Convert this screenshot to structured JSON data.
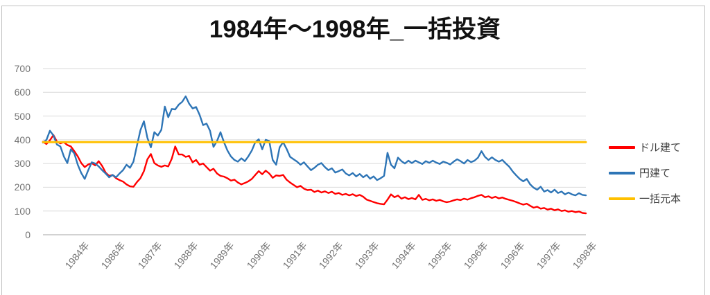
{
  "chart_data": {
    "type": "line",
    "title": "1984年～1998年_一括投資",
    "ylim": [
      0,
      700
    ],
    "y_ticks": [
      0,
      100,
      200,
      300,
      400,
      500,
      600,
      700
    ],
    "x_tick_labels": [
      "1984年",
      "1986年",
      "1987年",
      "1988年",
      "1989年",
      "1990年",
      "1991年",
      "1992年",
      "1993年",
      "1994年",
      "1995年",
      "1996年",
      "1996年",
      "1997年",
      "1998年"
    ],
    "grid": "horizontal",
    "legend_position": "right",
    "gridline_color": "#D9D9D9",
    "axis_line_color": "#A6A6A6",
    "tick_label_color": "#737373",
    "series": [
      {
        "name": "ドル建て",
        "key": "usd",
        "color": "#FF0000",
        "values": [
          392,
          382,
          398,
          420,
          392,
          385,
          390,
          378,
          372,
          352,
          330,
          302,
          285,
          296,
          302,
          292,
          310,
          290,
          262,
          248,
          252,
          238,
          230,
          224,
          212,
          204,
          202,
          222,
          238,
          268,
          318,
          340,
          302,
          292,
          286,
          292,
          288,
          320,
          372,
          338,
          338,
          328,
          332,
          305,
          315,
          295,
          300,
          285,
          270,
          278,
          258,
          248,
          245,
          238,
          228,
          232,
          220,
          212,
          218,
          225,
          235,
          252,
          268,
          255,
          270,
          258,
          240,
          250,
          248,
          252,
          232,
          220,
          210,
          200,
          206,
          194,
          188,
          190,
          180,
          186,
          178,
          183,
          176,
          181,
          172,
          176,
          168,
          172,
          166,
          171,
          163,
          168,
          160,
          148,
          143,
          138,
          133,
          130,
          128,
          148,
          170,
          158,
          165,
          152,
          158,
          150,
          155,
          149,
          168,
          147,
          151,
          145,
          149,
          143,
          147,
          141,
          137,
          140,
          145,
          149,
          146,
          152,
          148,
          154,
          158,
          164,
          168,
          158,
          162,
          155,
          160,
          153,
          157,
          151,
          147,
          143,
          138,
          132,
          127,
          131,
          122,
          114,
          118,
          110,
          113,
          106,
          110,
          103,
          107,
          100,
          103,
          97,
          100,
          95,
          98,
          92,
          90
        ]
      },
      {
        "name": "円建て",
        "key": "jpy",
        "color": "#2E75B6",
        "values": [
          388,
          400,
          438,
          418,
          380,
          372,
          330,
          302,
          360,
          342,
          295,
          260,
          235,
          272,
          305,
          300,
          288,
          272,
          258,
          242,
          252,
          242,
          258,
          272,
          295,
          282,
          308,
          375,
          440,
          478,
          408,
          368,
          432,
          418,
          442,
          540,
          495,
          530,
          528,
          548,
          560,
          583,
          552,
          532,
          538,
          505,
          462,
          468,
          438,
          370,
          395,
          432,
          390,
          355,
          330,
          315,
          308,
          322,
          310,
          330,
          355,
          390,
          402,
          360,
          400,
          395,
          315,
          295,
          368,
          390,
          362,
          328,
          318,
          308,
          295,
          305,
          288,
          272,
          282,
          295,
          302,
          285,
          272,
          280,
          262,
          268,
          275,
          258,
          250,
          260,
          246,
          256,
          242,
          252,
          236,
          246,
          230,
          238,
          248,
          345,
          295,
          280,
          325,
          310,
          300,
          312,
          302,
          312,
          305,
          298,
          310,
          303,
          312,
          304,
          298,
          308,
          303,
          296,
          308,
          318,
          310,
          300,
          315,
          306,
          312,
          325,
          352,
          328,
          315,
          326,
          315,
          308,
          315,
          300,
          286,
          266,
          250,
          235,
          225,
          235,
          212,
          198,
          190,
          202,
          182,
          188,
          178,
          190,
          176,
          182,
          170,
          178,
          170,
          166,
          175,
          168,
          166
        ]
      },
      {
        "name": "一括元本",
        "key": "principal",
        "color": "#FFC000",
        "constant": 390
      }
    ]
  }
}
